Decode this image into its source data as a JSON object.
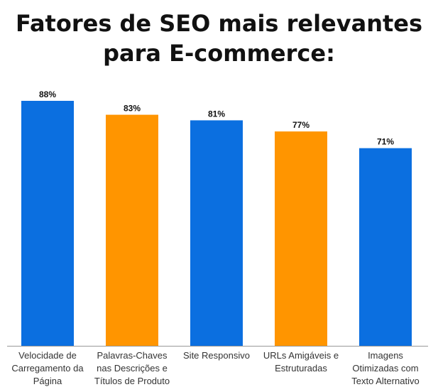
{
  "title_lines": [
    "Fatores de SEO mais relevantes",
    "para E-commerce:"
  ],
  "colors": {
    "blue": "#0b6fe0",
    "orange": "#ff9500",
    "axis": "#999999"
  },
  "chart_data": {
    "type": "bar",
    "title": "Fatores de SEO mais relevantes para E-commerce:",
    "xlabel": "",
    "ylabel": "",
    "ylim": [
      0,
      88
    ],
    "grid": false,
    "categories": [
      [
        "Velocidade de",
        "Carregamento da",
        "Página"
      ],
      [
        "Palavras-Chaves",
        "nas Descrições e",
        "Títulos de Produto"
      ],
      [
        "Site Responsivo"
      ],
      [
        "URLs Amigáveis e",
        "Estruturadas"
      ],
      [
        "Imagens",
        "Otimizadas com",
        "Texto Alternativo"
      ]
    ],
    "values": [
      88,
      83,
      81,
      77,
      71
    ],
    "value_labels": [
      "88%",
      "83%",
      "81%",
      "77%",
      "71%"
    ],
    "bar_colors": [
      "#0b6fe0",
      "#ff9500",
      "#0b6fe0",
      "#ff9500",
      "#0b6fe0"
    ]
  }
}
